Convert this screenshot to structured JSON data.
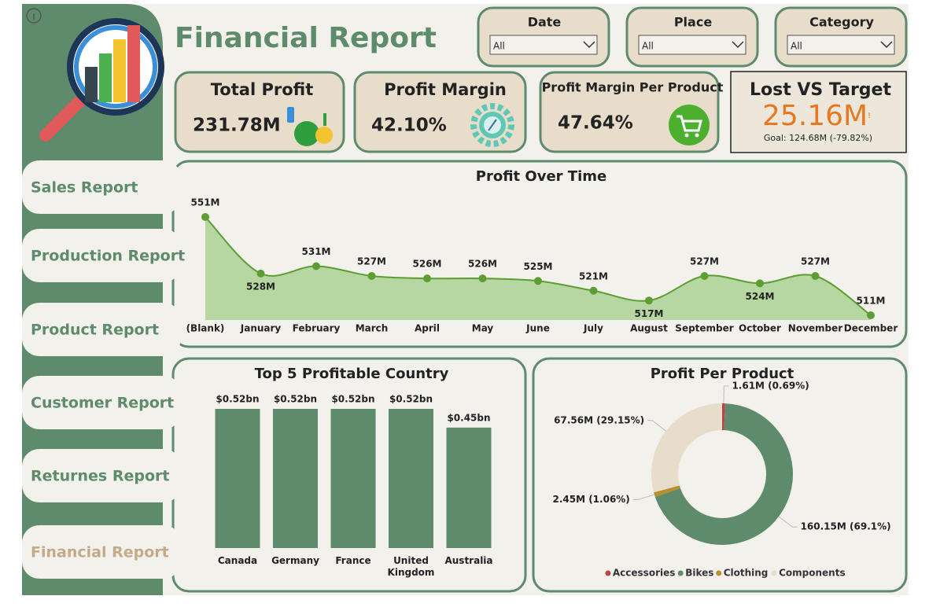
{
  "header": {
    "title": "Financial Report"
  },
  "filters": [
    {
      "label": "Date",
      "value": "All"
    },
    {
      "label": "Place",
      "value": "All"
    },
    {
      "label": "Category",
      "value": "All"
    }
  ],
  "nav": [
    "Sales Report",
    "Production Report",
    "Product Report",
    "Customer Report",
    "Returnes Report",
    "Financial Report"
  ],
  "kpis": [
    {
      "title": "Total Profit",
      "value": "231.78M"
    },
    {
      "title": "Profit Margin",
      "value": "42.10%"
    },
    {
      "title": "Profit Margin Per Product",
      "value": "47.64%"
    }
  ],
  "target": {
    "title": "Lost VS Target",
    "value": "25.16M",
    "flag": "!",
    "goal": "Goal: 124.68M (-79.82%)"
  },
  "chart_data": [
    {
      "type": "area",
      "title": "Profit Over Time",
      "categories": [
        "(Blank)",
        "January",
        "February",
        "March",
        "April",
        "May",
        "June",
        "July",
        "August",
        "September",
        "October",
        "November",
        "December"
      ],
      "values": [
        551,
        528,
        531,
        527,
        526,
        526,
        525,
        521,
        517,
        527,
        524,
        527,
        511
      ],
      "value_labels": [
        "551M",
        "528M",
        "531M",
        "527M",
        "526M",
        "526M",
        "525M",
        "521M",
        "517M",
        "527M",
        "524M",
        "527M",
        "511M"
      ],
      "color": "#5c9e31",
      "fill": "#b6d6a2"
    },
    {
      "type": "bar",
      "title": "Top 5 Profitable Country",
      "categories": [
        "Canada",
        "Germany",
        "France",
        "United Kingdom",
        "Australia"
      ],
      "values": [
        0.52,
        0.52,
        0.52,
        0.52,
        0.45
      ],
      "value_labels": [
        "$0.52bn",
        "$0.52bn",
        "$0.52bn",
        "$0.52bn",
        "$0.45bn"
      ],
      "color": "#5e8b6c"
    },
    {
      "type": "donut",
      "title": "Profit Per Product",
      "categories": [
        "Accessories",
        "Bikes",
        "Clothing",
        "Components"
      ],
      "values": [
        1.61,
        160.15,
        2.45,
        67.56
      ],
      "value_labels": [
        "1.61M (0.69%)",
        "160.15M (69.1%)",
        "2.45M (1.06%)",
        "67.56M (29.15%)"
      ],
      "colors": [
        "#b5474b",
        "#5e8b6c",
        "#b8912a",
        "#e8dccb"
      ],
      "legend": "bottom"
    }
  ]
}
